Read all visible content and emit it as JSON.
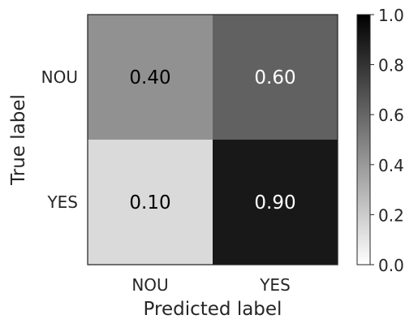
{
  "chart_data": {
    "type": "heatmap",
    "title": "",
    "xlabel": "Predicted label",
    "ylabel": "True label",
    "x_categories": [
      "NOU",
      "YES"
    ],
    "y_categories": [
      "NOU",
      "YES"
    ],
    "values": [
      [
        0.4,
        0.6
      ],
      [
        0.1,
        0.9
      ]
    ],
    "value_labels": [
      [
        "0.40",
        "0.60"
      ],
      [
        "0.10",
        "0.90"
      ]
    ],
    "colormap": "Greys",
    "colorbar": {
      "range": [
        0.0,
        1.0
      ],
      "ticks": [
        0.0,
        0.2,
        0.4,
        0.6,
        0.8,
        1.0
      ],
      "tick_labels": [
        "0.0",
        "0.2",
        "0.4",
        "0.6",
        "0.8",
        "1.0"
      ]
    }
  }
}
